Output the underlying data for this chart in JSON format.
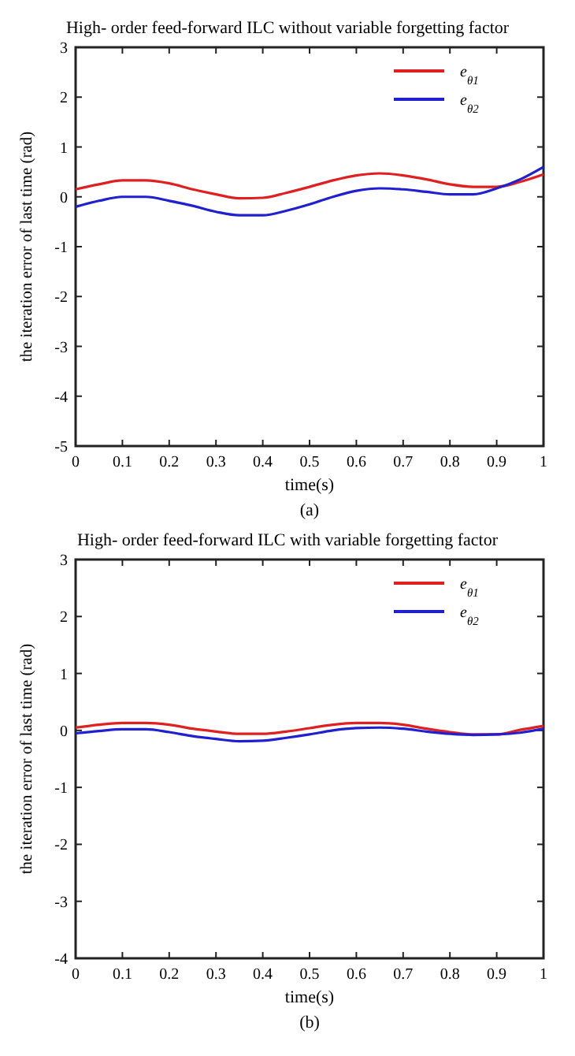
{
  "chart_data": [
    {
      "type": "line",
      "title": "High- order feed-forward ILC without variable forgetting factor",
      "xlabel": "time(s)",
      "ylabel": "the iteration error of last time (rad)",
      "annotations": [
        "(a)"
      ],
      "x": [
        0,
        0.05,
        0.1,
        0.15,
        0.2,
        0.25,
        0.3,
        0.35,
        0.4,
        0.45,
        0.5,
        0.55,
        0.6,
        0.65,
        0.7,
        0.75,
        0.8,
        0.85,
        0.9,
        0.95,
        1
      ],
      "series": [
        {
          "name": "e$_{θ1}$",
          "color": "#e02020",
          "values": [
            0.15,
            0.25,
            0.33,
            0.33,
            0.27,
            0.15,
            0.05,
            -0.03,
            -0.02,
            0.08,
            0.2,
            0.33,
            0.43,
            0.47,
            0.43,
            0.35,
            0.25,
            0.2,
            0.2,
            0.3,
            0.45
          ]
        },
        {
          "name": "e$_{θ2}$",
          "color": "#2020d0",
          "values": [
            -0.2,
            -0.08,
            0,
            0,
            -0.08,
            -0.18,
            -0.3,
            -0.37,
            -0.37,
            -0.28,
            -0.15,
            0,
            0.12,
            0.17,
            0.15,
            0.1,
            0.05,
            0.05,
            0.17,
            0.35,
            0.6
          ]
        }
      ],
      "xlim": [
        0,
        1
      ],
      "xticks": [
        0,
        0.1,
        0.2,
        0.3,
        0.4,
        0.5,
        0.6,
        0.7,
        0.8,
        0.9,
        1
      ],
      "ylim": [
        -5,
        3
      ],
      "yticks": [
        -5,
        -4,
        -3,
        -2,
        -1,
        0,
        1,
        2,
        3
      ],
      "grid": false,
      "legend": "top right",
      "line_style": "solid"
    },
    {
      "type": "line",
      "title": "High- order feed-forward ILC with variable forgetting factor",
      "xlabel": "time(s)",
      "ylabel": "the iteration error of last time (rad)",
      "annotations": [
        "(b)"
      ],
      "x": [
        0,
        0.05,
        0.1,
        0.15,
        0.2,
        0.25,
        0.3,
        0.35,
        0.4,
        0.45,
        0.5,
        0.55,
        0.6,
        0.65,
        0.7,
        0.75,
        0.8,
        0.85,
        0.9,
        0.95,
        1
      ],
      "series": [
        {
          "name": "e$_{θ1}$",
          "color": "#e02020",
          "values": [
            0.05,
            0.1,
            0.13,
            0.13,
            0.1,
            0.03,
            -0.02,
            -0.06,
            -0.06,
            -0.02,
            0.04,
            0.1,
            0.13,
            0.13,
            0.1,
            0.03,
            -0.03,
            -0.07,
            -0.07,
            0.01,
            0.08
          ]
        },
        {
          "name": "e$_{θ2}$",
          "color": "#2020d0",
          "values": [
            -0.05,
            -0.01,
            0.02,
            0.02,
            -0.03,
            -0.1,
            -0.15,
            -0.19,
            -0.18,
            -0.13,
            -0.07,
            0,
            0.04,
            0.05,
            0.03,
            -0.02,
            -0.06,
            -0.08,
            -0.07,
            -0.04,
            0.03
          ]
        }
      ],
      "xlim": [
        0,
        1
      ],
      "xticks": [
        0,
        0.1,
        0.2,
        0.3,
        0.4,
        0.5,
        0.6,
        0.7,
        0.8,
        0.9,
        1
      ],
      "ylim": [
        -4,
        3
      ],
      "yticks": [
        -4,
        -3,
        -2,
        -1,
        0,
        1,
        2,
        3
      ],
      "grid": false,
      "legend": "top right",
      "line_style": "solid"
    }
  ]
}
